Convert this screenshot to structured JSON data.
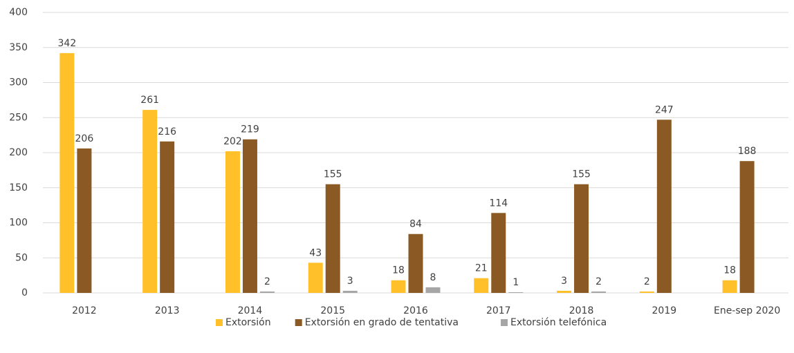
{
  "chart_data": {
    "type": "bar",
    "categories": [
      "2012",
      "2013",
      "2014",
      "2015",
      "2016",
      "2017",
      "2018",
      "2019",
      "Ene-sep 2020"
    ],
    "series": [
      {
        "name": "Extorsión",
        "color": "#FFC02A",
        "values": [
          342,
          261,
          202,
          43,
          18,
          21,
          3,
          2,
          18
        ]
      },
      {
        "name": "Extorsión en grado de tentativa",
        "color": "#8B5A24",
        "values": [
          206,
          216,
          219,
          155,
          84,
          114,
          155,
          247,
          188
        ]
      },
      {
        "name": "Extorsión telefónica",
        "color": "#A6A6A6",
        "values": [
          null,
          null,
          2,
          3,
          8,
          1,
          2,
          null,
          null
        ]
      }
    ],
    "ylim": [
      0,
      400
    ],
    "yticks": [
      0,
      50,
      100,
      150,
      200,
      250,
      300,
      350,
      400
    ],
    "grid": true,
    "legend": "bottom"
  }
}
